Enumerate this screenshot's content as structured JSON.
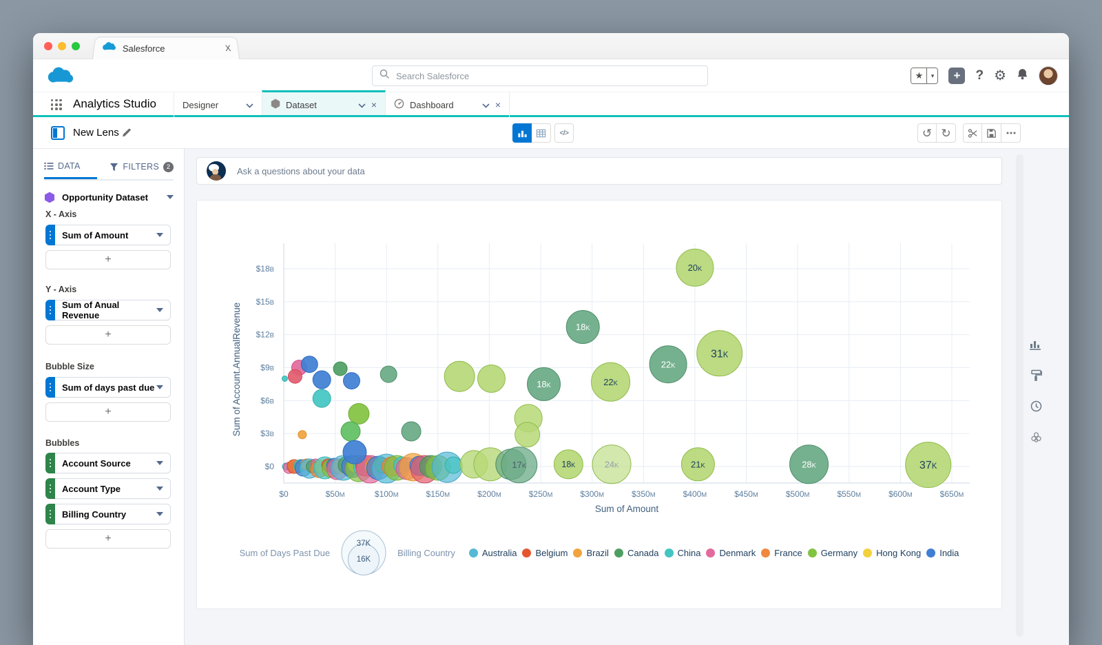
{
  "browser": {
    "tab_title": "Salesforce",
    "tab_close": "X"
  },
  "header": {
    "search_placeholder": "Search Salesforce",
    "help": "?"
  },
  "icons": {
    "star": "★",
    "caret": "▾",
    "plus": "+",
    "gear": "⚙",
    "undo": "↺",
    "redo": "↻",
    "close": "×"
  },
  "nav": {
    "app_title": "Analytics Studio",
    "designer": "Designer",
    "dataset": "Dataset",
    "dashboard": "Dashboard",
    "tab_close": "×"
  },
  "toolbar": {
    "lens_title": "New Lens",
    "code_label": "</>"
  },
  "sidebar": {
    "tab_data": "DATA",
    "tab_filters": "FILTERS",
    "filters_count": "2",
    "dataset_name": "Opportunity Dataset",
    "x_axis_label": "X - Axis",
    "x_axis_value": "Sum of Amount",
    "y_axis_label": "Y - Axis",
    "y_axis_value": "Sum of Anual Revenue",
    "bubble_size_label": "Bubble Size",
    "bubble_size_value": "Sum of days past due",
    "bubbles_label": "Bubbles",
    "bubble_fields": [
      "Account Source",
      "Account Type",
      "Billing Country"
    ],
    "add_label": "+"
  },
  "askbar": {
    "placeholder": "Ask a questions about your data"
  },
  "chart_data": {
    "type": "bubble",
    "xlabel": "Sum of Amount",
    "ylabel": "Sum of Account.AnnualRevenue",
    "currency": "$",
    "x_ticks": [
      0,
      50,
      100,
      150,
      200,
      250,
      300,
      350,
      400,
      450,
      500,
      550,
      600,
      650
    ],
    "x_suffix": "M",
    "y_ticks": [
      0,
      3,
      6,
      9,
      12,
      15,
      18
    ],
    "y_suffix": "B",
    "xlim": [
      0,
      666
    ],
    "ylim": [
      0,
      20.3
    ],
    "grid": true,
    "legend": {
      "size_title": "Sum of Days Past Due",
      "size_labels": [
        "37K",
        "16K"
      ],
      "color_title": "Billing Country",
      "countries": [
        {
          "name": "Australia",
          "c": "australia"
        },
        {
          "name": "Belgium",
          "c": "belgium"
        },
        {
          "name": "Brazil",
          "c": "brazil"
        },
        {
          "name": "Canada",
          "c": "canada"
        },
        {
          "name": "China",
          "c": "china"
        },
        {
          "name": "Denmark",
          "c": "denmark"
        },
        {
          "name": "France",
          "c": "france"
        },
        {
          "name": "Germany",
          "c": "germany"
        },
        {
          "name": "Hong Kong",
          "c": "hongkong"
        },
        {
          "name": "India",
          "c": "india"
        }
      ]
    },
    "palette": {
      "lightgreen": {
        "fill": "#b6d877",
        "stroke": "#90bb4c"
      },
      "seagreen": {
        "fill": "#6aaa85",
        "stroke": "#4f8f6b"
      },
      "green2": {
        "fill": "#5fbf62",
        "stroke": "#49a84f"
      },
      "crimson": {
        "fill": "#e25c6e",
        "stroke": "#cf4a5f"
      },
      "australia": {
        "fill": "#56b9d5",
        "stroke": "#3fa6c4"
      },
      "belgium": {
        "fill": "#e4572e",
        "stroke": "#cc4823"
      },
      "brazil": {
        "fill": "#f2a33c",
        "stroke": "#dd902c"
      },
      "canada": {
        "fill": "#4e9e63",
        "stroke": "#3d8a52"
      },
      "china": {
        "fill": "#43c5c2",
        "stroke": "#33b1ae"
      },
      "denmark": {
        "fill": "#e26a9c",
        "stroke": "#d05488"
      },
      "france": {
        "fill": "#f0883e",
        "stroke": "#dc7630"
      },
      "germany": {
        "fill": "#82c341",
        "stroke": "#6fae33"
      },
      "hongkong": {
        "fill": "#f2d13e",
        "stroke": "#ddbd2e"
      },
      "india": {
        "fill": "#3f7fd4",
        "stroke": "#306cc0"
      }
    },
    "label_colors": {
      "dark": "#1c3e5e",
      "white": "#ffffff",
      "gray": "#93a0ad",
      "graydark": "#4e5d6b"
    },
    "bubbles": [
      {
        "m": 400,
        "b": 18.1,
        "r": 27,
        "c": "lightgreen",
        "t": "20K",
        "tc": "dark"
      },
      {
        "m": 291,
        "b": 12.7,
        "r": 24,
        "c": "seagreen",
        "t": "18K",
        "tc": "white"
      },
      {
        "m": 424,
        "b": 10.3,
        "r": 33,
        "c": "lightgreen",
        "t": "31K",
        "tc": "dark"
      },
      {
        "m": 374,
        "b": 9.3,
        "r": 27,
        "c": "seagreen",
        "t": "22K",
        "tc": "white"
      },
      {
        "m": 253,
        "b": 7.5,
        "r": 24,
        "c": "seagreen",
        "t": "18K",
        "tc": "white"
      },
      {
        "m": 318,
        "b": 7.7,
        "r": 28,
        "c": "lightgreen",
        "t": "22K",
        "tc": "dark"
      },
      {
        "m": 171,
        "b": 8.2,
        "r": 22,
        "c": "lightgreen"
      },
      {
        "m": 202,
        "b": 8.0,
        "r": 20,
        "c": "lightgreen"
      },
      {
        "m": 102,
        "b": 8.4,
        "r": 12,
        "c": "seagreen"
      },
      {
        "m": 238,
        "b": 4.4,
        "r": 20,
        "c": "lightgreen",
        "o": 0.85
      },
      {
        "m": 237,
        "b": 2.9,
        "r": 18,
        "c": "lightgreen",
        "o": 0.85
      },
      {
        "m": 124,
        "b": 3.2,
        "r": 14,
        "c": "seagreen"
      },
      {
        "m": 185,
        "b": 0.2,
        "r": 20,
        "c": "lightgreen",
        "o": 0.8
      },
      {
        "m": 201,
        "b": 0.2,
        "r": 24,
        "c": "lightgreen",
        "o": 0.8
      },
      {
        "m": 221,
        "b": 0.2,
        "r": 22,
        "c": "seagreen",
        "o": 0.7
      },
      {
        "m": 229,
        "b": 0.15,
        "r": 26,
        "c": "seagreen",
        "t": "17K",
        "tc": "graydark",
        "o": 0.75
      },
      {
        "m": 277,
        "b": 0.2,
        "r": 21,
        "c": "lightgreen",
        "t": "18K",
        "tc": "dark"
      },
      {
        "m": 319,
        "b": 0.2,
        "r": 28,
        "c": "lightgreen",
        "t": "24K",
        "tc": "gray",
        "o": 0.6
      },
      {
        "m": 403,
        "b": 0.2,
        "r": 24,
        "c": "lightgreen",
        "t": "21K",
        "tc": "dark"
      },
      {
        "m": 511,
        "b": 0.2,
        "r": 28,
        "c": "seagreen",
        "t": "28K",
        "tc": "white"
      },
      {
        "m": 627,
        "b": 0.15,
        "r": 33,
        "c": "lightgreen",
        "t": "37K",
        "tc": "dark"
      },
      {
        "m": 1,
        "b": 8.0,
        "r": 4,
        "c": "china"
      },
      {
        "m": 15,
        "b": 9.0,
        "r": 11,
        "c": "denmark"
      },
      {
        "m": 11,
        "b": 8.2,
        "r": 10,
        "c": "crimson"
      },
      {
        "m": 25,
        "b": 9.3,
        "r": 12,
        "c": "india"
      },
      {
        "m": 37,
        "b": 7.9,
        "r": 13,
        "c": "india"
      },
      {
        "m": 55,
        "b": 8.9,
        "r": 10,
        "c": "canada"
      },
      {
        "m": 66,
        "b": 7.8,
        "r": 12,
        "c": "india"
      },
      {
        "m": 37,
        "b": 6.2,
        "r": 13,
        "c": "china"
      },
      {
        "m": 73,
        "b": 4.8,
        "r": 15,
        "c": "germany"
      },
      {
        "m": 65,
        "b": 3.2,
        "r": 14,
        "c": "green2"
      },
      {
        "m": 18,
        "b": 2.9,
        "r": 6,
        "c": "brazil"
      },
      {
        "m": 69,
        "b": 1.3,
        "r": 17,
        "c": "india"
      }
    ],
    "cluster": [
      {
        "m": 2,
        "r": 5,
        "c": "australia"
      },
      {
        "m": 5,
        "r": 8,
        "c": "denmark",
        "dy": 2
      },
      {
        "m": 8,
        "r": 6,
        "c": "hongkong",
        "dy": -2
      },
      {
        "m": 10,
        "r": 10,
        "c": "belgium"
      },
      {
        "m": 13,
        "r": 7,
        "c": "france",
        "dy": 3
      },
      {
        "m": 16,
        "r": 9,
        "c": "china",
        "dy": -1
      },
      {
        "m": 19,
        "r": 12,
        "c": "india",
        "dy": 2
      },
      {
        "m": 22,
        "r": 8,
        "c": "brazil",
        "dy": -3
      },
      {
        "m": 25,
        "r": 14,
        "c": "australia",
        "dy": 3
      },
      {
        "m": 28,
        "r": 9,
        "c": "canada"
      },
      {
        "m": 31,
        "r": 7,
        "c": "denmark",
        "dy": -4
      },
      {
        "m": 34,
        "r": 12,
        "c": "france",
        "dy": 4
      },
      {
        "m": 37,
        "r": 10,
        "c": "hongkong"
      },
      {
        "m": 40,
        "r": 16,
        "c": "china",
        "dy": 2
      },
      {
        "m": 43,
        "r": 9,
        "c": "belgium",
        "dy": -2
      },
      {
        "m": 46,
        "r": 13,
        "c": "germany",
        "dy": 3
      },
      {
        "m": 49,
        "r": 11,
        "c": "india",
        "dy": -1
      },
      {
        "m": 52,
        "r": 15,
        "c": "denmark",
        "dy": 4
      },
      {
        "m": 55,
        "r": 10,
        "c": "brazil"
      },
      {
        "m": 58,
        "r": 18,
        "c": "australia",
        "dy": 2
      },
      {
        "m": 61,
        "r": 12,
        "c": "canada",
        "dy": -2
      },
      {
        "m": 64,
        "r": 9,
        "c": "france",
        "dy": 3
      },
      {
        "m": 67,
        "r": 16,
        "c": "india"
      },
      {
        "m": 70,
        "r": 11,
        "c": "hongkong",
        "dy": -3
      },
      {
        "m": 73,
        "r": 19,
        "c": "germany",
        "dy": 3
      },
      {
        "m": 76,
        "r": 12,
        "c": "china",
        "dy": 1
      },
      {
        "m": 80,
        "r": 15,
        "c": "belgium",
        "dy": -1
      },
      {
        "m": 84,
        "r": 20,
        "c": "denmark",
        "dy": 4
      },
      {
        "m": 88,
        "r": 13,
        "c": "brazil"
      },
      {
        "m": 92,
        "r": 17,
        "c": "india",
        "dy": 2
      },
      {
        "m": 96,
        "r": 11,
        "c": "canada",
        "dy": -2
      },
      {
        "m": 100,
        "r": 21,
        "c": "australia",
        "dy": 3
      },
      {
        "m": 105,
        "r": 14,
        "c": "france"
      },
      {
        "m": 110,
        "r": 18,
        "c": "germany",
        "dy": 2
      },
      {
        "m": 115,
        "r": 12,
        "c": "china",
        "dy": -2
      },
      {
        "m": 120,
        "r": 16,
        "c": "denmark",
        "dy": 3
      },
      {
        "m": 126,
        "r": 20,
        "c": "brazil",
        "dy": 1
      },
      {
        "m": 132,
        "r": 14,
        "c": "india",
        "dy": -1
      },
      {
        "m": 137,
        "r": 20,
        "c": "crimson",
        "dy": 4
      },
      {
        "m": 143,
        "r": 16,
        "c": "canada"
      },
      {
        "m": 150,
        "r": 18,
        "c": "germany",
        "dy": 2
      },
      {
        "m": 159,
        "r": 22,
        "c": "australia",
        "dy": 1
      },
      {
        "m": 165,
        "r": 12,
        "c": "china",
        "dy": -2
      }
    ]
  }
}
